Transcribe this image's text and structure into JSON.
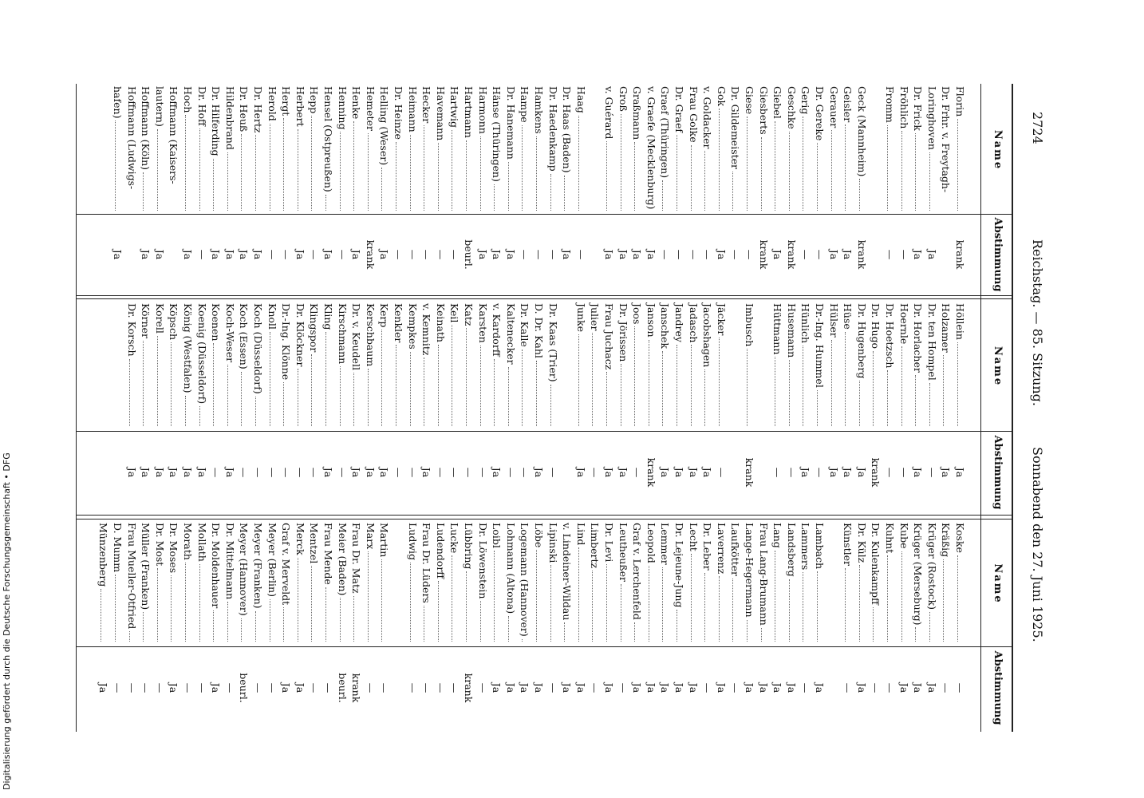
{
  "header": {
    "page": "2724",
    "center": "Reichstag. — 85. Sitzung.",
    "date": "Sonnabend den 27. Juni 1925."
  },
  "column_headers": {
    "name": "Name",
    "vote": "Abstimmung"
  },
  "columns": [
    {
      "sections": [
        {
          "rows": [
            {
              "name": "Florin",
              "vote": "krank"
            },
            {
              "name": "Dr. Frhr. v. Freytagh-"
            },
            {
              "name": "Loringhoven",
              "vote": "Ja"
            },
            {
              "name": "Dr. Frick",
              "vote": "Ja"
            },
            {
              "name": "Fröhlich",
              "vote": "—"
            },
            {
              "name": "Fromm",
              "vote": "—"
            }
          ]
        },
        {
          "rows": [
            {
              "name": "Geck (Mannheim)",
              "vote": "krank"
            },
            {
              "name": "Geisler",
              "vote": "Ja"
            },
            {
              "name": "Gerauer",
              "vote": "Ja"
            },
            {
              "name": "Dr. Gereke",
              "vote": "—"
            },
            {
              "name": "Gerig",
              "vote": "—"
            },
            {
              "name": "Geschke",
              "vote": "krank"
            },
            {
              "name": "Giebel",
              "vote": "Ja"
            },
            {
              "name": "Giesberts",
              "vote": "krank"
            },
            {
              "name": "Giese",
              "vote": "—"
            },
            {
              "name": "Dr. Gildemeister",
              "vote": "—"
            },
            {
              "name": "Gok",
              "vote": "Ja"
            },
            {
              "name": "v. Goldacker",
              "vote": "—"
            },
            {
              "name": "Frau Golke",
              "vote": "—"
            },
            {
              "name": "Dr. Graef",
              "vote": "—"
            },
            {
              "name": "Graef (Thüringen)",
              "vote": "—"
            },
            {
              "name": "v. Graefe (Mecklenburg)",
              "vote": "Ja"
            },
            {
              "name": "Graßmann",
              "vote": "Ja"
            },
            {
              "name": "Groß",
              "vote": "Ja"
            },
            {
              "name": "v. Guérard",
              "vote": "Ja"
            }
          ]
        },
        {
          "rows": [
            {
              "name": "Haag",
              "vote": "—"
            },
            {
              "name": "Dr. Haas (Baden)",
              "vote": "Ja"
            },
            {
              "name": "Dr. Haedenkamp",
              "vote": "—"
            },
            {
              "name": "Hamkens",
              "vote": "—"
            },
            {
              "name": "Hampe",
              "vote": "—"
            },
            {
              "name": "Dr. Hanemann",
              "vote": "Ja"
            },
            {
              "name": "Hänse (Thüringen)",
              "vote": "Ja"
            },
            {
              "name": "Harmonn",
              "vote": "Ja"
            },
            {
              "name": "Hartmann",
              "vote": "beurl."
            },
            {
              "name": "Hartwig",
              "vote": "—"
            },
            {
              "name": "Havemann",
              "vote": "—"
            },
            {
              "name": "Hecker",
              "vote": "—"
            },
            {
              "name": "Heimann",
              "vote": "—"
            },
            {
              "name": "Dr. Heinze",
              "vote": "—"
            },
            {
              "name": "Helling (Weser)",
              "vote": "Ja"
            },
            {
              "name": "Hemeter",
              "vote": "krank"
            },
            {
              "name": "Henke",
              "vote": "Ja"
            },
            {
              "name": "Henning",
              "vote": "—"
            },
            {
              "name": "Hensel (Ostpreußen)",
              "vote": "Ja"
            },
            {
              "name": "Hepp",
              "vote": "—"
            },
            {
              "name": "Herbert",
              "vote": "Ja"
            },
            {
              "name": "Hergt",
              "vote": "—"
            },
            {
              "name": "Herold",
              "vote": "—"
            },
            {
              "name": "Dr. Hertz",
              "vote": "Ja"
            },
            {
              "name": "Dr. Heuß",
              "vote": "Ja"
            },
            {
              "name": "Hildenbrand",
              "vote": "Ja"
            },
            {
              "name": "Dr. Hilferding",
              "vote": "Ja"
            },
            {
              "name": "Dr. Hoff",
              "vote": "—"
            },
            {
              "name": "Hoch",
              "vote": "Ja"
            },
            {
              "name": "Hoffmann (Kaisers-"
            },
            {
              "name": "lautern)",
              "vote": "Ja"
            },
            {
              "name": "Hoffmann (Köln)",
              "vote": "Ja"
            },
            {
              "name": "Hoffmann (Ludwigs-"
            },
            {
              "name": "hafen)",
              "vote": "Ja"
            }
          ]
        }
      ]
    },
    {
      "sections": [
        {
          "rows": [
            {
              "name": "Höllein",
              "vote": "Ja"
            },
            {
              "name": "Holzamer",
              "vote": "Ja"
            },
            {
              "name": "Dr. ten Hompel",
              "vote": "—"
            },
            {
              "name": "Dr. Horlacher",
              "vote": "Ja"
            },
            {
              "name": "Hoernle",
              "vote": "—"
            },
            {
              "name": "Dr. Hoetzsch",
              "vote": "—"
            },
            {
              "name": "Dr. Hugo",
              "vote": "krank"
            },
            {
              "name": "Dr. Hugenberg",
              "vote": "Ja"
            },
            {
              "name": "Hüse",
              "vote": "Ja"
            },
            {
              "name": "Hülser",
              "vote": "Ja"
            },
            {
              "name": "Dr.-Ing. Hummel",
              "vote": "—"
            },
            {
              "name": "Hünlich",
              "vote": "Ja"
            },
            {
              "name": "Husemann",
              "vote": "—"
            },
            {
              "name": "Hüttmann",
              "vote": "—"
            }
          ]
        },
        {
          "rows": [
            {
              "name": "Imbusch",
              "vote": "krank"
            }
          ]
        },
        {
          "rows": [
            {
              "name": "Jäcker",
              "vote": "—"
            },
            {
              "name": "Jacobshagen",
              "vote": "Ja"
            },
            {
              "name": "Jadasch",
              "vote": "Ja"
            },
            {
              "name": "Jandrey",
              "vote": "Ja"
            },
            {
              "name": "Janschek",
              "vote": "Ja"
            },
            {
              "name": "Janson",
              "vote": "krank"
            },
            {
              "name": "Joos",
              "vote": "—"
            },
            {
              "name": "Dr. Jörissen",
              "vote": "Ja"
            },
            {
              "name": "Frau Juchacz",
              "vote": "Ja"
            },
            {
              "name": "Julier",
              "vote": "—"
            },
            {
              "name": "Junke",
              "vote": "Ja"
            }
          ]
        },
        {
          "rows": [
            {
              "name": "Dr. Kaas (Trier)",
              "vote": "—"
            },
            {
              "name": "D. Dr. Kahl",
              "vote": "Ja"
            },
            {
              "name": "Dr. Kalle",
              "vote": "—"
            },
            {
              "name": "Kaltenecker",
              "vote": "—"
            },
            {
              "name": "v. Kardorff",
              "vote": "Ja"
            },
            {
              "name": "Karsten",
              "vote": "—"
            },
            {
              "name": "Katz",
              "vote": "—"
            },
            {
              "name": "Keil",
              "vote": "—"
            },
            {
              "name": "Keinath",
              "vote": "—"
            },
            {
              "name": "v. Kemnitz",
              "vote": "Ja"
            },
            {
              "name": "Kempkes",
              "vote": "—"
            },
            {
              "name": "Kenkler",
              "vote": "—"
            },
            {
              "name": "Kerp",
              "vote": "Ja"
            },
            {
              "name": "Kerschbaum",
              "vote": "Ja"
            },
            {
              "name": "Dr. v. Keudell",
              "vote": "Ja"
            },
            {
              "name": "Kirschmann",
              "vote": "—"
            },
            {
              "name": "Kling",
              "vote": "Ja"
            },
            {
              "name": "Klingspor",
              "vote": "—"
            },
            {
              "name": "Dr. Klöckner",
              "vote": "—"
            },
            {
              "name": "Dr.-Ing. Klönne",
              "vote": "—"
            },
            {
              "name": "Knoll",
              "vote": "—"
            },
            {
              "name": "Koch (Düsseldorf)",
              "vote": "—"
            },
            {
              "name": "Koch (Essen)",
              "vote": "—"
            },
            {
              "name": "Koch-Weser",
              "vote": "Ja"
            },
            {
              "name": "Koenen",
              "vote": "—"
            },
            {
              "name": "Koenig (Düsseldorf)",
              "vote": "Ja"
            },
            {
              "name": "König (Westfalen)",
              "vote": "Ja"
            },
            {
              "name": "Köpsch",
              "vote": "Ja"
            },
            {
              "name": "Korell",
              "vote": "Ja"
            },
            {
              "name": "Körner",
              "vote": "Ja"
            },
            {
              "name": "Dr. Korsch",
              "vote": "Ja"
            }
          ]
        }
      ]
    },
    {
      "sections": [
        {
          "rows": [
            {
              "name": "Koske",
              "vote": "—"
            },
            {
              "name": "Kräßig",
              "vote": "—"
            },
            {
              "name": "Krüger (Rostock)",
              "vote": "Ja"
            },
            {
              "name": "Krüger (Merseburg)",
              "vote": "Ja"
            },
            {
              "name": "Kube",
              "vote": "Ja"
            },
            {
              "name": "Kuhnt",
              "vote": "—"
            },
            {
              "name": "Dr. Kulenkampff",
              "vote": "—"
            },
            {
              "name": "Dr. Külz",
              "vote": "Ja"
            },
            {
              "name": "Künstler",
              "vote": "—"
            }
          ]
        },
        {
          "rows": [
            {
              "name": "Lambach",
              "vote": "Ja"
            },
            {
              "name": "Lammers",
              "vote": "—"
            },
            {
              "name": "Landsberg",
              "vote": "Ja"
            },
            {
              "name": "Lang",
              "vote": "Ja"
            },
            {
              "name": "Frau Lang-Brumann",
              "vote": "Ja"
            },
            {
              "name": "Lange-Hegermann",
              "vote": "Ja"
            },
            {
              "name": "Laufkötter",
              "vote": "—"
            },
            {
              "name": "Laverrenz",
              "vote": "Ja"
            },
            {
              "name": "Dr. Leber",
              "vote": "—"
            },
            {
              "name": "Lecht",
              "vote": "Ja"
            },
            {
              "name": "Dr. Lejeune-Jung",
              "vote": "Ja"
            },
            {
              "name": "Lemmer",
              "vote": "Ja"
            },
            {
              "name": "Leopold",
              "vote": "Ja"
            },
            {
              "name": "Graf v. Lerchenfeld",
              "vote": "Ja"
            },
            {
              "name": "Leutheußer",
              "vote": "—"
            },
            {
              "name": "Dr. Levi",
              "vote": "Ja"
            },
            {
              "name": "Limbertz",
              "vote": "—"
            },
            {
              "name": "Lind",
              "vote": "Ja"
            },
            {
              "name": "v. Lindeiner-Wildau",
              "vote": "Ja"
            },
            {
              "name": "Lipinski",
              "vote": "—"
            },
            {
              "name": "Löbe",
              "vote": "Ja"
            },
            {
              "name": "Logemann (Hannover)",
              "vote": "Ja"
            },
            {
              "name": "Lohmann (Altona)",
              "vote": "Ja"
            },
            {
              "name": "Loibl",
              "vote": "Ja"
            },
            {
              "name": "Dr. Löwenstein",
              "vote": "—"
            },
            {
              "name": "Lübbring",
              "vote": "krank"
            },
            {
              "name": "Lucke",
              "vote": "—"
            },
            {
              "name": "Ludendorff",
              "vote": "—"
            },
            {
              "name": "Frau Dr. Lüders",
              "vote": "—"
            },
            {
              "name": "Ludwig",
              "vote": "—"
            }
          ]
        },
        {
          "rows": [
            {
              "name": "Martin",
              "vote": "—"
            },
            {
              "name": "Marx",
              "vote": "—"
            },
            {
              "name": "Frau Dr. Matz",
              "vote": "krank"
            },
            {
              "name": "Meier (Baden)",
              "vote": "beurl."
            },
            {
              "name": "Frau Mende",
              "vote": "—"
            },
            {
              "name": "Mentzel",
              "vote": "—"
            },
            {
              "name": "Merck",
              "vote": "Ja"
            },
            {
              "name": "Graf v. Merveldt",
              "vote": "Ja"
            },
            {
              "name": "Meyer (Berlin)",
              "vote": "—"
            },
            {
              "name": "Meyer (Franken)",
              "vote": "—"
            },
            {
              "name": "Meyer (Hannover)",
              "vote": "beurl."
            },
            {
              "name": "Dr. Mittelmann",
              "vote": "—"
            },
            {
              "name": "Dr. Moldenhauer",
              "vote": "Ja"
            },
            {
              "name": "Mollath",
              "vote": "—"
            },
            {
              "name": "Morath",
              "vote": "—"
            },
            {
              "name": "Dr. Moses",
              "vote": "Ja"
            },
            {
              "name": "Dr. Most",
              "vote": "—"
            },
            {
              "name": "Müller (Franken)",
              "vote": "—"
            },
            {
              "name": "Frau Mueller-Otfried",
              "vote": "—"
            },
            {
              "name": "D. Mumm",
              "vote": "—"
            },
            {
              "name": "Münzenberg",
              "vote": "Ja"
            }
          ]
        }
      ]
    }
  ],
  "footer": "Digitalisierung gefördert durch die Deutsche Forschungsgemeinschaft • DFG"
}
